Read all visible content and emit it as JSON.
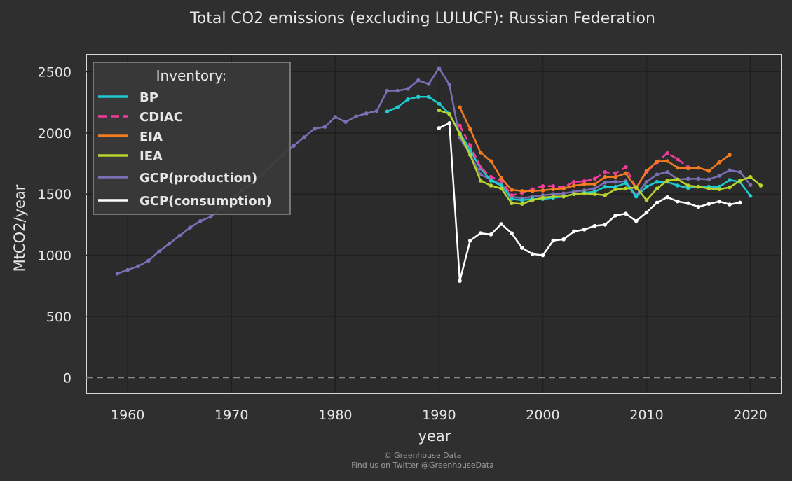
{
  "chart_data": {
    "type": "line",
    "title": "Total CO2 emissions (excluding LULUCF): Russian Federation",
    "xlabel": "year",
    "ylabel": "MtCO2/year",
    "xlim": [
      1956,
      2023
    ],
    "ylim": [
      -130,
      2640
    ],
    "xticks": [
      1960,
      1970,
      1980,
      1990,
      2000,
      2010,
      2020
    ],
    "yticks": [
      0,
      500,
      1000,
      1500,
      2000,
      2500
    ],
    "grid": true,
    "zero_line": true,
    "legend": {
      "title": "Inventory:",
      "position": "top-left"
    },
    "series": [
      {
        "name": "GCP(production)",
        "color": "#7b6fb5",
        "dashed": false,
        "x_start": 1959,
        "values": [
          850,
          880,
          910,
          955,
          1030,
          1095,
          1160,
          1225,
          1280,
          1315,
          1390,
          1455,
          1530,
          1595,
          1670,
          1745,
          1825,
          1895,
          1965,
          2035,
          2050,
          2130,
          2090,
          2135,
          2160,
          2180,
          2345,
          2345,
          2360,
          2430,
          2400,
          2530,
          2395,
          1960,
          1825,
          1660,
          1620,
          1580,
          1480,
          1465,
          1480,
          1490,
          1500,
          1505,
          1520,
          1530,
          1545,
          1595,
          1600,
          1605,
          1490,
          1600,
          1660,
          1680,
          1620,
          1625,
          1625,
          1620,
          1650,
          1695,
          1680,
          1575
        ]
      },
      {
        "name": "BP",
        "color": "#1ecbcf",
        "dashed": false,
        "x_start": 1985,
        "values": [
          2175,
          2210,
          2275,
          2295,
          2295,
          2240,
          2155,
          2000,
          1860,
          1710,
          1610,
          1570,
          1460,
          1450,
          1460,
          1460,
          1470,
          1480,
          1500,
          1510,
          1520,
          1560,
          1560,
          1590,
          1480,
          1560,
          1600,
          1600,
          1570,
          1550,
          1560,
          1560,
          1560,
          1615,
          1600,
          1485
        ]
      },
      {
        "name": "CDIAC",
        "color": "#f03c9b",
        "dashed": true,
        "x_start": 1992,
        "values": [
          2060,
          1900,
          1720,
          1640,
          1610,
          1490,
          1510,
          1540,
          1565,
          1565,
          1555,
          1600,
          1605,
          1625,
          1680,
          1670,
          1720,
          1550,
          1680,
          1760,
          1835,
          1785,
          1720
        ]
      },
      {
        "name": "EIA",
        "color": "#f47c20",
        "dashed": false,
        "x_start": 1992,
        "values": [
          2210,
          2030,
          1840,
          1770,
          1630,
          1535,
          1525,
          1525,
          1530,
          1540,
          1545,
          1570,
          1580,
          1580,
          1640,
          1640,
          1670,
          1550,
          1690,
          1765,
          1770,
          1715,
          1710,
          1715,
          1690,
          1760,
          1820
        ]
      },
      {
        "name": "IEA",
        "color": "#b8d42a",
        "dashed": false,
        "x_start": 1990,
        "values": [
          2185,
          2155,
          1990,
          1820,
          1610,
          1570,
          1545,
          1425,
          1420,
          1450,
          1470,
          1480,
          1480,
          1500,
          1505,
          1500,
          1490,
          1540,
          1545,
          1555,
          1450,
          1545,
          1610,
          1620,
          1570,
          1560,
          1545,
          1540,
          1555,
          1610,
          1640,
          1570
        ]
      },
      {
        "name": "GCP(consumption)",
        "color": "#ffffff",
        "dashed": false,
        "x_start": 1990,
        "values": [
          2040,
          2080,
          790,
          1120,
          1180,
          1170,
          1255,
          1180,
          1060,
          1010,
          1000,
          1120,
          1130,
          1195,
          1210,
          1240,
          1250,
          1325,
          1340,
          1280,
          1350,
          1430,
          1475,
          1440,
          1425,
          1395,
          1420,
          1440,
          1415,
          1430
        ]
      }
    ]
  },
  "credit": {
    "line1": "© Greenhouse Data",
    "line2": "Find us on Twitter @GreenhouseData"
  }
}
